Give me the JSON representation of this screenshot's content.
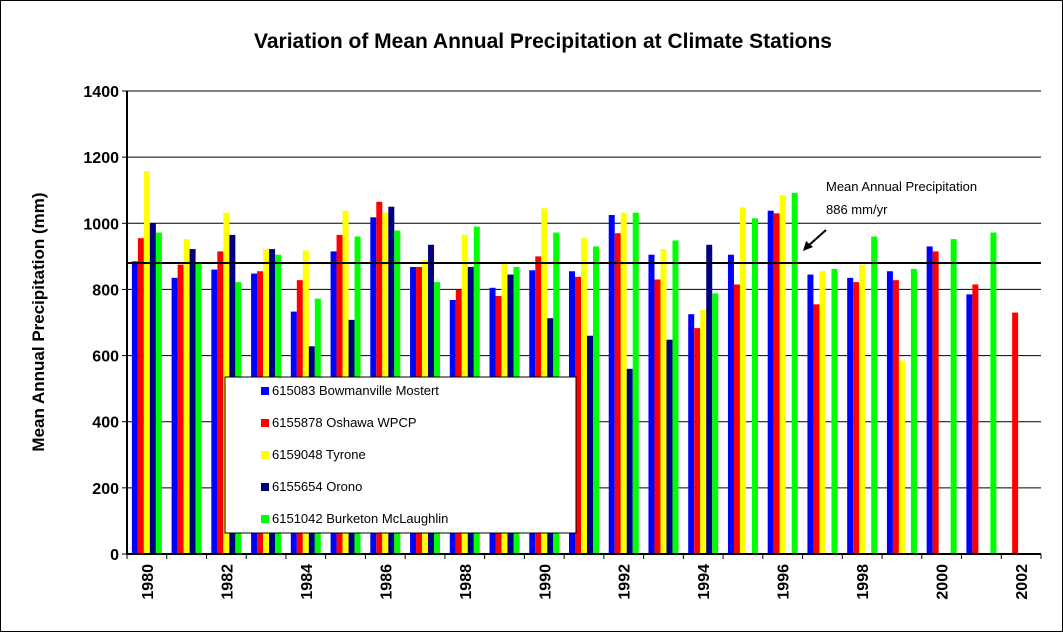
{
  "chart_data": {
    "type": "bar",
    "title": "Variation of Mean Annual Precipitation at Climate Stations",
    "xlabel": "",
    "ylabel": "Mean Annual Precipitation (mm)",
    "ylim": [
      0,
      1400
    ],
    "yticks": [
      "0",
      "200",
      "400",
      "600",
      "800",
      "1000",
      "1200",
      "1400"
    ],
    "grid": "horizontal",
    "legend_position": "lower-left",
    "categories": [
      1980,
      1981,
      1982,
      1983,
      1984,
      1985,
      1986,
      1987,
      1988,
      1989,
      1990,
      1991,
      1992,
      1993,
      1994,
      1995,
      1996,
      1997,
      1998,
      1999,
      2000,
      2001,
      2002
    ],
    "xtick_labels": [
      "1980",
      "1982",
      "1984",
      "1986",
      "1988",
      "1990",
      "1992",
      "1994",
      "1996",
      "1998",
      "2000",
      "2002"
    ],
    "series": [
      {
        "name": "615083 Bowmanville Mostert",
        "color": "#0000ff",
        "values": [
          885,
          835,
          860,
          848,
          733,
          915,
          1018,
          868,
          768,
          805,
          858,
          855,
          1025,
          905,
          725,
          905,
          1038,
          845,
          835,
          855,
          930,
          785,
          null
        ]
      },
      {
        "name": "6155878 Oshawa WPCP",
        "color": "#ff0000",
        "values": [
          955,
          875,
          915,
          855,
          828,
          965,
          1065,
          868,
          800,
          780,
          900,
          838,
          970,
          830,
          683,
          815,
          1030,
          755,
          822,
          828,
          915,
          815,
          730
        ]
      },
      {
        "name": "6159048 Tyrone",
        "color": "#ffff00",
        "values": [
          1158,
          952,
          1032,
          922,
          918,
          1038,
          1032,
          888,
          965,
          885,
          1045,
          955,
          1032,
          922,
          738,
          1048,
          1085,
          855,
          875,
          585,
          null,
          null,
          null
        ]
      },
      {
        "name": "6155654 Orono",
        "color": "#000080",
        "values": [
          1000,
          922,
          965,
          922,
          628,
          708,
          1050,
          935,
          868,
          845,
          713,
          660,
          560,
          648,
          935,
          null,
          null,
          null,
          null,
          null,
          null,
          null,
          null
        ]
      },
      {
        "name": "6151042 Burketon McLaughlin",
        "color": "#00ff00",
        "values": [
          972,
          878,
          822,
          905,
          772,
          960,
          978,
          822,
          990,
          868,
          972,
          930,
          1032,
          948,
          788,
          1015,
          1092,
          862,
          960,
          862,
          952,
          972,
          null
        ]
      }
    ],
    "reference_line": {
      "value": 880
    },
    "annotation": {
      "line1": "Mean Annual Precipitation",
      "line2": "886 mm/yr"
    }
  }
}
